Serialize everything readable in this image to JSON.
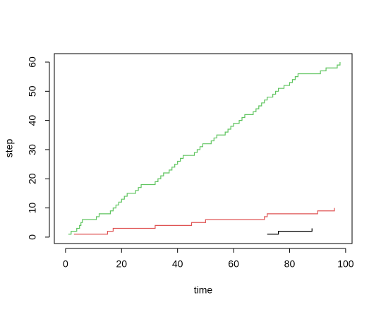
{
  "chart_data": {
    "type": "step",
    "x_label": "time",
    "y_label": "step",
    "xlim": [
      -4,
      102.3
    ],
    "ylim": [
      -2.2,
      62.9
    ],
    "xticks": [
      0,
      20,
      40,
      60,
      80,
      100
    ],
    "yticks": [
      0,
      10,
      20,
      30,
      40,
      50,
      60
    ],
    "series": [
      {
        "color": "#5ec45e",
        "x": [
          1,
          2,
          4,
          5,
          5.5,
          6,
          11,
          12,
          16,
          17,
          18,
          19,
          20,
          21,
          22,
          25,
          26,
          27,
          32,
          33,
          34,
          35,
          37,
          38,
          39,
          40,
          41,
          42,
          46,
          47,
          48,
          49,
          52,
          53,
          54,
          57,
          58,
          59,
          60,
          62,
          63,
          64,
          67,
          68,
          69,
          70,
          71,
          72,
          74,
          75,
          76,
          78,
          80,
          81,
          82,
          83,
          91,
          93,
          97,
          98
        ],
        "values": [
          1,
          2,
          3,
          4,
          5,
          6,
          7,
          8,
          9,
          10,
          11,
          12,
          13,
          14,
          15,
          16,
          17,
          18,
          19,
          20,
          21,
          22,
          23,
          24,
          25,
          26,
          27,
          28,
          29,
          30,
          31,
          32,
          33,
          34,
          35,
          36,
          37,
          38,
          39,
          40,
          41,
          42,
          43,
          44,
          45,
          46,
          47,
          48,
          49,
          50,
          51,
          52,
          53,
          54,
          55,
          56,
          57,
          58,
          59,
          60
        ]
      },
      {
        "color": "#df5353",
        "x": [
          3,
          15,
          17,
          32,
          45,
          50,
          71,
          72,
          90,
          96
        ],
        "values": [
          1,
          2,
          3,
          4,
          5,
          6,
          7,
          8,
          9,
          10
        ]
      },
      {
        "color": "#000000",
        "x": [
          72,
          76,
          88
        ],
        "values": [
          1,
          2,
          3
        ]
      }
    ]
  }
}
